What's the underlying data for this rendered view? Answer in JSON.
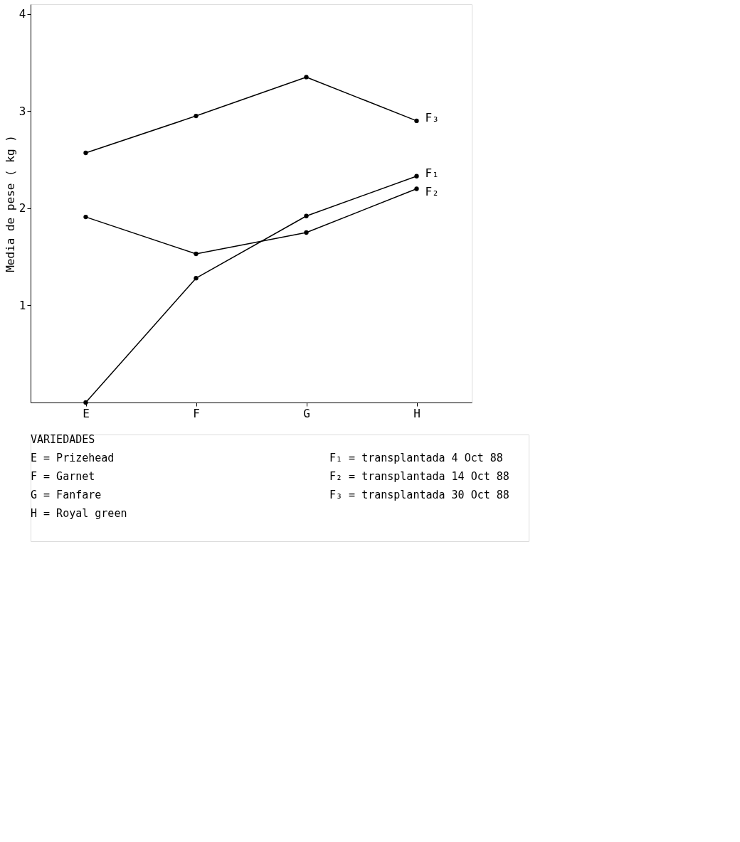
{
  "chart_data": {
    "type": "line",
    "ylabel": "Media de pese ( kg )",
    "categories": [
      "E",
      "F",
      "G",
      "H"
    ],
    "series": [
      {
        "name": "F₁",
        "color": "#000000",
        "values": [
          0,
          1.28,
          1.92,
          2.33
        ]
      },
      {
        "name": "F₂",
        "color": "#000000",
        "values": [
          1.91,
          1.53,
          1.75,
          2.2
        ]
      },
      {
        "name": "F₃",
        "color": "#000000",
        "values": [
          2.57,
          2.95,
          3.35,
          2.9
        ]
      }
    ],
    "ylim": [
      0,
      4.1
    ],
    "yticks": [
      1,
      2,
      3,
      4
    ],
    "grid": false,
    "marker": "circle",
    "line_style": "solid",
    "annotations": [
      "VARIEDADES",
      "E = Prizehead",
      "F = Garnet",
      "G = Fanfare",
      "H = Royal green",
      "F₁ = transplantada  4 Oct 88",
      "F₂ = transplantada 14 Oct 88",
      "F₃ = transplantada 30 Oct 88"
    ]
  }
}
